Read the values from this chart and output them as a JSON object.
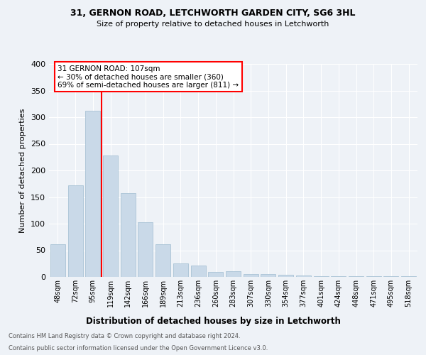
{
  "title1": "31, GERNON ROAD, LETCHWORTH GARDEN CITY, SG6 3HL",
  "title2": "Size of property relative to detached houses in Letchworth",
  "xlabel": "Distribution of detached houses by size in Letchworth",
  "ylabel": "Number of detached properties",
  "categories": [
    "48sqm",
    "72sqm",
    "95sqm",
    "119sqm",
    "142sqm",
    "166sqm",
    "189sqm",
    "213sqm",
    "236sqm",
    "260sqm",
    "283sqm",
    "307sqm",
    "330sqm",
    "354sqm",
    "377sqm",
    "401sqm",
    "424sqm",
    "448sqm",
    "471sqm",
    "495sqm",
    "518sqm"
  ],
  "values": [
    62,
    172,
    312,
    228,
    157,
    103,
    61,
    26,
    21,
    10,
    11,
    6,
    6,
    4,
    3,
    2,
    2,
    1,
    2,
    1,
    2
  ],
  "bar_color": "#c9d9e8",
  "bar_edgecolor": "#a0bcd0",
  "annotation_text": "31 GERNON ROAD: 107sqm\n← 30% of detached houses are smaller (360)\n69% of semi-detached houses are larger (811) →",
  "annotation_box_color": "white",
  "annotation_box_edgecolor": "red",
  "vline_x_index": 2.5,
  "vline_color": "red",
  "ylim": [
    0,
    400
  ],
  "yticks": [
    0,
    50,
    100,
    150,
    200,
    250,
    300,
    350,
    400
  ],
  "footer_line1": "Contains HM Land Registry data © Crown copyright and database right 2024.",
  "footer_line2": "Contains public sector information licensed under the Open Government Licence v3.0.",
  "bg_color": "#eef2f7",
  "plot_bg_color": "#eef2f7",
  "grid_color": "#ffffff"
}
